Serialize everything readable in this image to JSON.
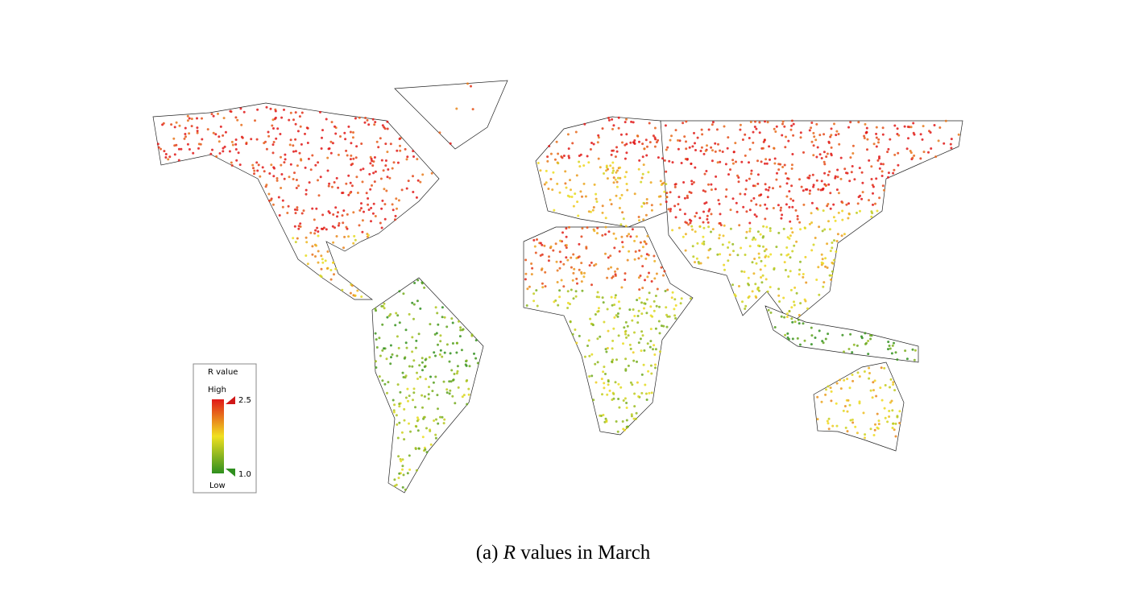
{
  "legend": {
    "title": "R value",
    "high": "High",
    "low": "Low",
    "scale": [
      {
        "value": 1,
        "label": "1.0"
      },
      2.5
    ]
  },
  "caption": {
    "label": "(a)",
    "symbol": "R",
    "text": "values in March"
  }
}
